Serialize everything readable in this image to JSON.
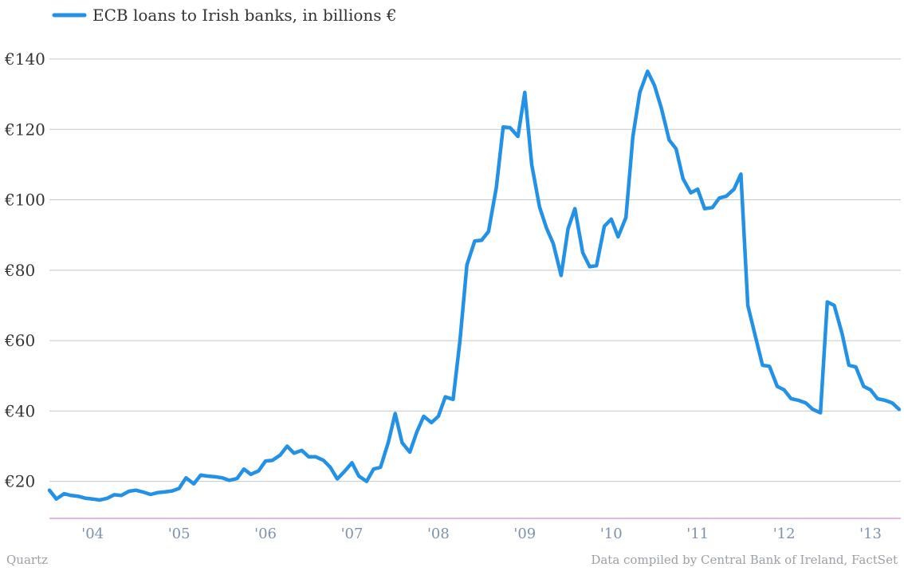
{
  "chart_data": {
    "type": "line",
    "series": [
      {
        "name": "ECB loans to Irish banks, in billions €",
        "color": "#2291e6",
        "x": [
          2003.5,
          2003.58,
          2003.67,
          2003.75,
          2003.83,
          2003.92,
          2004.0,
          2004.08,
          2004.17,
          2004.25,
          2004.33,
          2004.42,
          2004.5,
          2004.58,
          2004.67,
          2004.75,
          2004.83,
          2004.92,
          2005.0,
          2005.08,
          2005.17,
          2005.25,
          2005.33,
          2005.42,
          2005.5,
          2005.58,
          2005.67,
          2005.75,
          2005.83,
          2005.92,
          2006.0,
          2006.08,
          2006.17,
          2006.25,
          2006.33,
          2006.42,
          2006.5,
          2006.58,
          2006.67,
          2006.75,
          2006.83,
          2006.92,
          2007.0,
          2007.08,
          2007.17,
          2007.25,
          2007.33,
          2007.42,
          2007.5,
          2007.58,
          2007.67,
          2007.75,
          2007.83,
          2007.92,
          2008.0,
          2008.08,
          2008.17,
          2008.25,
          2008.33,
          2008.42,
          2008.5,
          2008.58,
          2008.67,
          2008.75,
          2008.83,
          2008.92,
          2009.0,
          2009.08,
          2009.17,
          2009.25,
          2009.33,
          2009.42,
          2009.5,
          2009.58,
          2009.67,
          2009.75,
          2009.83,
          2009.92,
          2010.0,
          2010.08,
          2010.17,
          2010.25,
          2010.33,
          2010.42,
          2010.5,
          2010.58,
          2010.67,
          2010.75,
          2010.83,
          2010.92,
          2011.0,
          2011.08,
          2011.17,
          2011.25,
          2011.33,
          2011.42,
          2011.5,
          2011.58,
          2011.67,
          2011.75,
          2011.83,
          2011.92,
          2012.0,
          2012.08,
          2012.17,
          2012.25,
          2012.33,
          2012.42,
          2012.5,
          2012.58,
          2012.67,
          2012.75,
          2012.83,
          2012.92,
          2013.0,
          2013.08,
          2013.17,
          2013.25,
          2013.33
        ],
        "values": [
          17.5,
          15,
          16.5,
          16,
          15.8,
          15.2,
          15,
          14.7,
          15.2,
          16.2,
          16,
          17.2,
          17.5,
          17,
          16.3,
          16.8,
          17,
          17.3,
          18,
          21,
          19.3,
          21.8,
          21.5,
          21.3,
          21,
          20.3,
          20.8,
          23.5,
          22,
          23,
          25.8,
          26,
          27.5,
          30,
          28,
          28.8,
          27,
          27,
          26,
          24,
          20.7,
          23,
          25.3,
          21.5,
          20,
          23.5,
          24,
          31,
          39.3,
          31,
          28.3,
          34,
          38.5,
          36.7,
          38.5,
          44,
          43.3,
          60,
          81.5,
          88.3,
          88.5,
          91,
          103.5,
          120.7,
          120.5,
          118,
          130.5,
          110,
          98,
          92,
          87.5,
          78.5,
          91.8,
          97.5,
          85,
          81,
          81.3,
          92.5,
          94.5,
          89.5,
          95,
          118,
          130.5,
          136.5,
          132.5,
          126,
          117,
          114.5,
          106,
          102,
          103,
          97.5,
          97.8,
          100.5,
          101,
          103,
          107.3,
          70,
          61,
          53,
          52.7,
          47,
          46,
          43.5,
          43,
          42.3,
          40.5,
          39.5,
          71,
          70,
          62,
          53,
          52.5,
          47,
          46,
          43.5,
          43,
          42.3,
          40.5
        ]
      }
    ],
    "x_ticks": [
      {
        "value": 2004,
        "label": "'04"
      },
      {
        "value": 2005,
        "label": "'05"
      },
      {
        "value": 2006,
        "label": "'06"
      },
      {
        "value": 2007,
        "label": "'07"
      },
      {
        "value": 2008,
        "label": "'08"
      },
      {
        "value": 2009,
        "label": "'09"
      },
      {
        "value": 2010,
        "label": "'10"
      },
      {
        "value": 2011,
        "label": "'11"
      },
      {
        "value": 2012,
        "label": "'12"
      },
      {
        "value": 2013,
        "label": "'13"
      }
    ],
    "y_ticks": [
      {
        "value": 20,
        "label": "€20"
      },
      {
        "value": 40,
        "label": "€40"
      },
      {
        "value": 60,
        "label": "€60"
      },
      {
        "value": 80,
        "label": "€80"
      },
      {
        "value": 100,
        "label": "€100"
      },
      {
        "value": 120,
        "label": "€120"
      },
      {
        "value": 140,
        "label": "€140"
      }
    ],
    "xlim": [
      2003.5,
      2013.35
    ],
    "ylim": [
      9.5,
      140
    ],
    "grid": true,
    "legend_position": "top-left",
    "baseline_color": "#e066c8",
    "grid_color": "#c8c8c8"
  },
  "footer": {
    "source_left": "Quartz",
    "source_right": "Data compiled by Central Bank of Ireland, FactSet"
  }
}
